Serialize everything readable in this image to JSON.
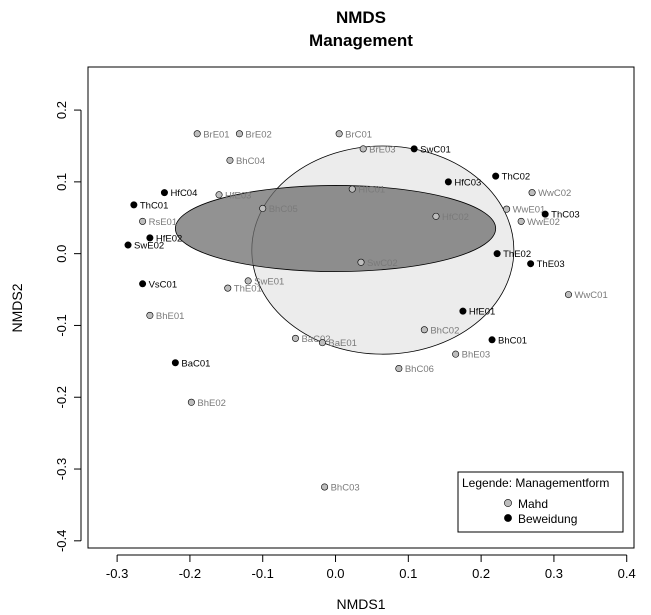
{
  "chart_data": {
    "type": "scatter",
    "title": "NMDS",
    "subtitle": "Management",
    "xlabel": "NMDS1",
    "ylabel": "NMDS2",
    "xlim": [
      -0.34,
      0.41
    ],
    "ylim": [
      -0.41,
      0.26
    ],
    "xticks": [
      -0.3,
      -0.2,
      -0.1,
      0.0,
      0.1,
      0.2,
      0.3,
      0.4
    ],
    "xtick_labels": [
      "-0.3",
      "-0.2",
      "-0.1",
      "0.0",
      "0.1",
      "0.2",
      "0.3",
      "0.4"
    ],
    "yticks": [
      -0.4,
      -0.3,
      -0.2,
      -0.1,
      0.0,
      0.1,
      0.2
    ],
    "ytick_labels": [
      "-0.4",
      "-0.3",
      "-0.2",
      "-0.1",
      "0.0",
      "0.1",
      "0.2"
    ],
    "grid": false,
    "legend": {
      "title": "Legende: Managementform",
      "placement": "bottom-right",
      "entries": [
        {
          "name": "Mahd",
          "color": "#bdbdbd"
        },
        {
          "name": "Beweidung",
          "color": "#000000"
        }
      ]
    },
    "colors": {
      "Mahd_point": "#bdbdbd",
      "Mahd_label": "#7a7a7a",
      "Beweidung_point": "#000000",
      "Beweidung_label": "#000000",
      "Mahd_ellipse_fill": "#e6e6e6",
      "Beweidung_ellipse_fill": "#6e6e6e"
    },
    "ellipses": [
      {
        "group": "Mahd",
        "center": [
          0.065,
          0.005
        ],
        "semi_axes": [
          0.18,
          0.145
        ]
      },
      {
        "group": "Beweidung",
        "center": [
          0.0,
          0.035
        ],
        "semi_axes": [
          0.22,
          0.06
        ]
      }
    ],
    "series": [
      {
        "name": "Mahd",
        "points": [
          {
            "label": "BrE01",
            "x": -0.19,
            "y": 0.167
          },
          {
            "label": "BrE02",
            "x": -0.132,
            "y": 0.167
          },
          {
            "label": "BhC04",
            "x": -0.145,
            "y": 0.13
          },
          {
            "label": "BrC01",
            "x": 0.005,
            "y": 0.167
          },
          {
            "label": "BrE03",
            "x": 0.038,
            "y": 0.146
          },
          {
            "label": "RsE01",
            "x": -0.265,
            "y": 0.045
          },
          {
            "label": "HfE03",
            "x": -0.16,
            "y": 0.082
          },
          {
            "label": "BhC05",
            "x": -0.1,
            "y": 0.063
          },
          {
            "label": "HfC01",
            "x": 0.023,
            "y": 0.09
          },
          {
            "label": "HfC02",
            "x": 0.138,
            "y": 0.052
          },
          {
            "label": "WwC02",
            "x": 0.27,
            "y": 0.085
          },
          {
            "label": "WwE01",
            "x": 0.235,
            "y": 0.062
          },
          {
            "label": "WwE02",
            "x": 0.255,
            "y": 0.045
          },
          {
            "label": "SwC02",
            "x": 0.035,
            "y": -0.012
          },
          {
            "label": "SwE01",
            "x": -0.12,
            "y": -0.038
          },
          {
            "label": "ThE01",
            "x": -0.148,
            "y": -0.048
          },
          {
            "label": "WwC01",
            "x": 0.32,
            "y": -0.057
          },
          {
            "label": "BhE01",
            "x": -0.255,
            "y": -0.086
          },
          {
            "label": "BaC02",
            "x": -0.055,
            "y": -0.118
          },
          {
            "label": "BaE01",
            "x": -0.018,
            "y": -0.124
          },
          {
            "label": "BhC02",
            "x": 0.122,
            "y": -0.106
          },
          {
            "label": "BhC06",
            "x": 0.087,
            "y": -0.16
          },
          {
            "label": "BhE03",
            "x": 0.165,
            "y": -0.14
          },
          {
            "label": "BhE02",
            "x": -0.198,
            "y": -0.207
          },
          {
            "label": "BhC03",
            "x": -0.015,
            "y": -0.325
          }
        ]
      },
      {
        "name": "Beweidung",
        "points": [
          {
            "label": "SwC01",
            "x": 0.108,
            "y": 0.146
          },
          {
            "label": "HfC04",
            "x": -0.235,
            "y": 0.085
          },
          {
            "label": "ThC01",
            "x": -0.277,
            "y": 0.068
          },
          {
            "label": "HfC03",
            "x": 0.155,
            "y": 0.1
          },
          {
            "label": "ThC02",
            "x": 0.22,
            "y": 0.108
          },
          {
            "label": "ThC03",
            "x": 0.288,
            "y": 0.055
          },
          {
            "label": "HfE02",
            "x": -0.255,
            "y": 0.022
          },
          {
            "label": "SwE02",
            "x": -0.285,
            "y": 0.012
          },
          {
            "label": "ThE02",
            "x": 0.222,
            "y": 0.0
          },
          {
            "label": "ThE03",
            "x": 0.268,
            "y": -0.014
          },
          {
            "label": "VsC01",
            "x": -0.265,
            "y": -0.042
          },
          {
            "label": "HfE01",
            "x": 0.175,
            "y": -0.08
          },
          {
            "label": "BhC01",
            "x": 0.215,
            "y": -0.12
          },
          {
            "label": "BaC01",
            "x": -0.22,
            "y": -0.152
          }
        ]
      }
    ]
  }
}
